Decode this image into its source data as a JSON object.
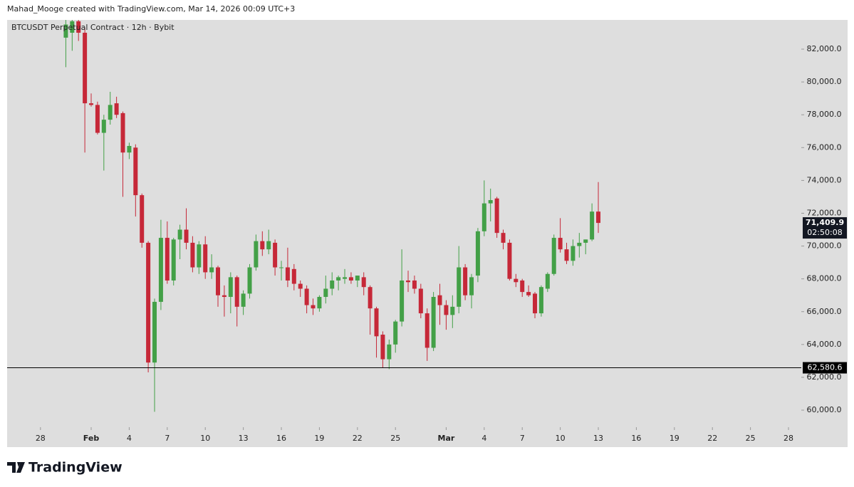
{
  "header": {
    "credit": "Mahad_Mooge created with TradingView.com, Mar 14, 2026 00:09 UTC+3"
  },
  "chart_data": {
    "type": "candlestick",
    "title": "BTCUSDT Perpetual Contract · 12h · Bybit",
    "x": [
      30,
      30.5,
      31,
      31.5,
      32,
      32.5,
      33,
      33.5,
      34,
      34.5,
      35,
      35.5,
      36,
      36.5,
      37,
      37.5,
      38,
      38.5,
      39,
      39.5,
      40,
      40.5,
      41,
      41.5,
      42,
      42.5,
      43,
      43.5,
      44,
      44.5,
      45,
      45.5,
      46,
      46.5,
      47,
      47.5,
      48,
      48.5,
      49,
      49.5,
      50,
      50.5,
      51,
      51.5,
      52,
      52.5,
      53,
      53.5,
      54,
      54.5,
      55,
      55.5,
      56,
      56.5,
      57,
      57.5,
      58,
      58.5,
      59,
      59.5,
      60,
      60.5,
      61,
      61.5,
      62,
      62.5,
      63,
      63.5,
      64,
      64.5,
      65,
      65.5,
      66,
      66.5,
      67,
      67.5,
      68,
      68.5,
      69,
      69.5,
      70,
      70.5,
      71,
      71.5,
      72
    ],
    "open": [
      82700,
      83000,
      83700,
      83000,
      78700,
      78600,
      76900,
      77700,
      78700,
      78100,
      75700,
      76000,
      73100,
      70200,
      62900,
      66600,
      70500,
      67900,
      70400,
      71000,
      70200,
      68700,
      70100,
      68400,
      68700,
      67000,
      66900,
      68100,
      66300,
      67100,
      68700,
      70300,
      69800,
      70200,
      68700,
      68700,
      68600,
      67700,
      67400,
      66400,
      66200,
      66900,
      67400,
      67900,
      68000,
      68100,
      67900,
      68100,
      67500,
      66200,
      64600,
      63100,
      64000,
      65400,
      67900,
      67900,
      67400,
      65900,
      63800,
      67000,
      66400,
      65800,
      66300,
      68700,
      67000,
      68200,
      70900,
      72600,
      72900,
      70800,
      70200,
      68000,
      67900,
      67200,
      67100,
      65900,
      67400,
      68300,
      70500,
      69800,
      69100,
      70000,
      70200,
      70400,
      72100
    ],
    "high": [
      83900,
      83900,
      83900,
      83300,
      79300,
      78800,
      78000,
      79400,
      79100,
      78200,
      76300,
      76200,
      73200,
      70300,
      66800,
      71600,
      71500,
      70500,
      71300,
      72300,
      70600,
      70300,
      70600,
      69500,
      68800,
      67600,
      68400,
      68200,
      67300,
      68900,
      70700,
      70900,
      71000,
      70400,
      69100,
      69900,
      68900,
      67900,
      67600,
      66800,
      67000,
      68200,
      68400,
      68200,
      68600,
      68400,
      68200,
      68400,
      67600,
      66300,
      64800,
      64300,
      65500,
      69800,
      68500,
      68200,
      67700,
      66200,
      67200,
      67700,
      66700,
      67000,
      70000,
      68900,
      68300,
      71100,
      74000,
      73500,
      73000,
      71000,
      70400,
      68300,
      68000,
      67600,
      67200,
      67600,
      68400,
      70700,
      71700,
      70200,
      70400,
      70800,
      70400,
      72600,
      73900
    ],
    "low": [
      80900,
      81900,
      82500,
      75700,
      78500,
      76800,
      74600,
      77400,
      77800,
      73000,
      75300,
      71800,
      69900,
      62300,
      59900,
      66100,
      67700,
      67600,
      69200,
      69800,
      68400,
      68300,
      68000,
      68000,
      66300,
      65700,
      65900,
      65100,
      65800,
      66800,
      68500,
      69400,
      69500,
      68200,
      67900,
      67500,
      67300,
      66900,
      65900,
      65800,
      66000,
      66500,
      67000,
      67300,
      67700,
      67700,
      67500,
      67000,
      64600,
      63200,
      62600,
      62500,
      63500,
      65100,
      67200,
      67100,
      65600,
      63000,
      63600,
      65200,
      64900,
      65000,
      65900,
      66700,
      66200,
      67800,
      70600,
      71500,
      70500,
      69800,
      67900,
      67500,
      66900,
      66900,
      65600,
      65700,
      67200,
      68200,
      69600,
      68900,
      68800,
      69300,
      69500,
      70300,
      70800
    ],
    "close": [
      83500,
      83700,
      83000,
      78700,
      78600,
      76900,
      77700,
      78600,
      78000,
      75700,
      76100,
      73100,
      70200,
      62900,
      66600,
      70500,
      67900,
      70400,
      71000,
      70200,
      68700,
      70100,
      68400,
      68700,
      67000,
      66900,
      68100,
      66300,
      67100,
      68700,
      70300,
      69800,
      70300,
      68700,
      68700,
      67900,
      67700,
      67400,
      66400,
      66200,
      66900,
      67400,
      67900,
      68100,
      68100,
      67900,
      68200,
      67500,
      66200,
      64500,
      63100,
      64000,
      65400,
      67900,
      67800,
      67400,
      65900,
      63800,
      66900,
      66400,
      65800,
      66300,
      68700,
      67000,
      68100,
      70900,
      72600,
      72800,
      70800,
      70200,
      68000,
      67800,
      67200,
      67000,
      65900,
      67500,
      68300,
      70500,
      69800,
      69100,
      70000,
      70200,
      70400,
      72100,
      71409.9
    ],
    "up_color": "#43a047",
    "down_color": "#c62838",
    "xlim": [
      25.37,
      88.01
    ],
    "xticks": [
      28,
      {
        "value": 32,
        "label": "Feb"
      },
      {
        "value": 35,
        "label": "4"
      },
      {
        "value": 38,
        "label": "7"
      },
      {
        "value": 41,
        "label": "10"
      },
      {
        "value": 44,
        "label": "13"
      },
      {
        "value": 47,
        "label": "16"
      },
      {
        "value": 50,
        "label": "19"
      },
      {
        "value": 53,
        "label": "22"
      },
      {
        "value": 56,
        "label": "25"
      },
      {
        "value": 60,
        "label": "Mar"
      },
      {
        "value": 63,
        "label": "4"
      },
      {
        "value": 66,
        "label": "7"
      },
      {
        "value": 69,
        "label": "10"
      },
      {
        "value": 72,
        "label": "13"
      },
      {
        "value": 75,
        "label": "16"
      },
      {
        "value": 78,
        "label": "19"
      },
      {
        "value": 81,
        "label": "22"
      },
      {
        "value": 84,
        "label": "25"
      },
      {
        "value": 87,
        "label": "28"
      }
    ],
    "ylim": [
      58960,
      83780
    ],
    "yticks": [
      {
        "value": 60000,
        "label": "60,000.0"
      },
      {
        "value": 62000,
        "label": "62,000.0"
      },
      {
        "value": 64000,
        "label": "64,000.0"
      },
      {
        "value": 66000,
        "label": "66,000.0"
      },
      {
        "value": 68000,
        "label": "68,000.0"
      },
      {
        "value": 70000,
        "label": "70,000.0"
      },
      {
        "value": 72000,
        "label": "72,000.0"
      },
      {
        "value": 74000,
        "label": "74,000.0"
      },
      {
        "value": 76000,
        "label": "76,000.0"
      },
      {
        "value": 78000,
        "label": "78,000.0"
      },
      {
        "value": 80000,
        "label": "80,000.0"
      },
      {
        "value": 82000,
        "label": "82,000.0"
      }
    ],
    "hline": {
      "value": 62580.6,
      "label": "62,580.6",
      "color": "#000000"
    },
    "last_price_label": "71,409.9",
    "countdown": "02:50:08"
  },
  "footer": {
    "brand": "TradingView"
  }
}
